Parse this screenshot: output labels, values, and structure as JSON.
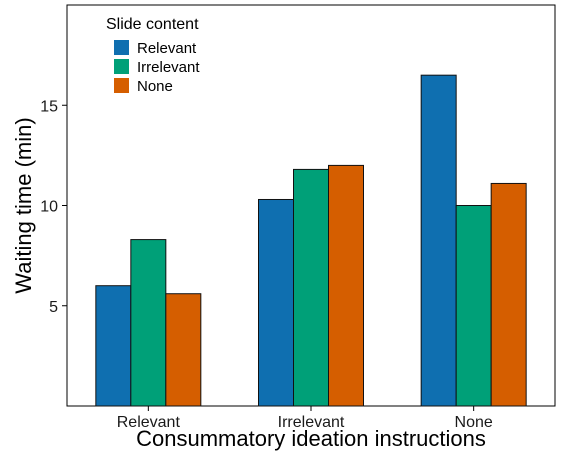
{
  "chart_data": {
    "type": "bar",
    "title": "",
    "xlabel": "Consummatory ideation instructions",
    "ylabel": "Waiting time (min)",
    "categories": [
      "Relevant",
      "Irrelevant",
      "None"
    ],
    "series": [
      {
        "name": "Relevant",
        "color": "#0f6fb0",
        "values": [
          6.0,
          10.3,
          16.5
        ]
      },
      {
        "name": "Irrelevant",
        "color": "#00a078",
        "values": [
          8.3,
          11.8,
          10.0
        ]
      },
      {
        "name": "None",
        "color": "#d55e00",
        "values": [
          5.6,
          12.0,
          11.1
        ]
      }
    ],
    "ylim": [
      0,
      20
    ],
    "yticks": [
      5,
      10,
      15
    ],
    "legend": {
      "title": "Slide content",
      "position": "top-left"
    },
    "grid": false
  }
}
